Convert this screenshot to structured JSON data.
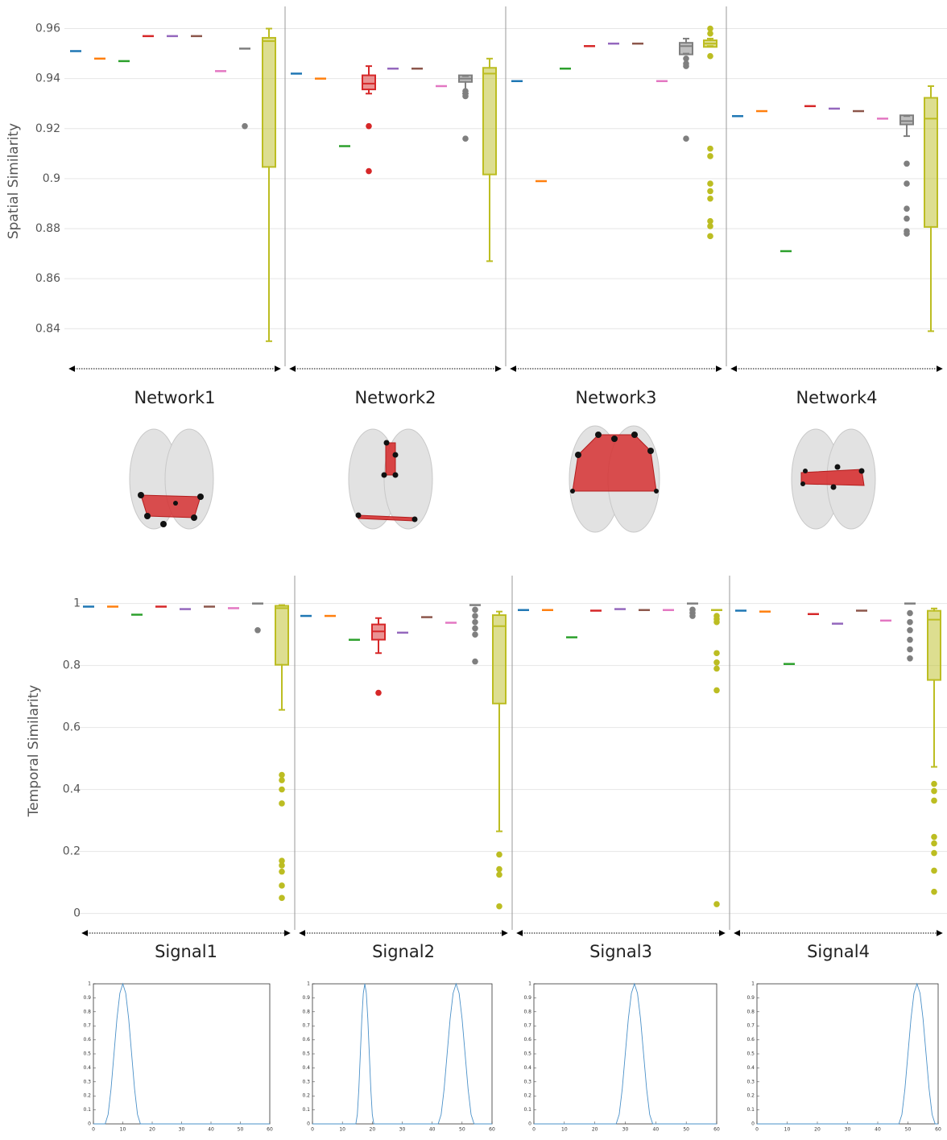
{
  "chart_data": [
    {
      "type": "box",
      "ylabel": "Spatial Similarity",
      "ylim": [
        0.833,
        0.965
      ],
      "yticks": [
        0.84,
        0.86,
        0.88,
        0.9,
        0.92,
        0.94,
        0.96
      ],
      "grid": true,
      "groups": [
        "Network1",
        "Network2",
        "Network3",
        "Network4"
      ],
      "series": [
        {
          "color": "#1f77b4",
          "boxes": [
            {
              "median": 0.951
            },
            {
              "median": 0.942
            },
            {
              "median": 0.939
            },
            {
              "median": 0.925
            }
          ]
        },
        {
          "color": "#ff7f0e",
          "boxes": [
            {
              "median": 0.948
            },
            {
              "median": 0.94
            },
            {
              "median": 0.899
            },
            {
              "median": 0.927
            }
          ]
        },
        {
          "color": "#2ca02c",
          "boxes": [
            {
              "median": 0.947
            },
            {
              "median": 0.913
            },
            {
              "median": 0.944
            },
            {
              "median": 0.871
            }
          ]
        },
        {
          "color": "#d62728",
          "boxes": [
            {
              "median": 0.957
            },
            {
              "low": 0.934,
              "q1": 0.936,
              "median": 0.938,
              "q3": 0.941,
              "high": 0.945,
              "outliers": [
                0.921,
                0.903
              ]
            },
            {
              "median": 0.953
            },
            {
              "median": 0.929
            }
          ]
        },
        {
          "color": "#9467bd",
          "boxes": [
            {
              "median": 0.957
            },
            {
              "median": 0.944
            },
            {
              "median": 0.954
            },
            {
              "median": 0.928
            }
          ]
        },
        {
          "color": "#8c564b",
          "boxes": [
            {
              "median": 0.957
            },
            {
              "median": 0.944
            },
            {
              "median": 0.954
            },
            {
              "median": 0.927
            }
          ]
        },
        {
          "color": "#e377c2",
          "boxes": [
            {
              "median": 0.943
            },
            {
              "median": 0.937
            },
            {
              "median": 0.939
            },
            {
              "median": 0.924
            }
          ]
        },
        {
          "color": "#7f7f7f",
          "boxes": [
            {
              "median": 0.952,
              "outliers": [
                0.921
              ]
            },
            {
              "low": 0.934,
              "q1": 0.939,
              "median": 0.94,
              "q3": 0.941,
              "high": 0.941,
              "outliers": [
                0.935,
                0.933,
                0.916
              ]
            },
            {
              "low": 0.95,
              "q1": 0.95,
              "median": 0.953,
              "q3": 0.954,
              "high": 0.956,
              "outliers": [
                0.948,
                0.946,
                0.945,
                0.916
              ]
            },
            {
              "low": 0.917,
              "q1": 0.922,
              "median": 0.923,
              "q3": 0.925,
              "high": 0.925,
              "outliers": [
                0.906,
                0.898,
                0.888,
                0.884,
                0.879,
                0.878
              ]
            }
          ]
        },
        {
          "color": "#bcbd22",
          "boxes": [
            {
              "low": 0.835,
              "q1": 0.905,
              "median": 0.955,
              "q3": 0.956,
              "high": 0.96
            },
            {
              "low": 0.867,
              "q1": 0.902,
              "median": 0.942,
              "q3": 0.944,
              "high": 0.948
            },
            {
              "low": 0.953,
              "q1": 0.953,
              "median": 0.954,
              "q3": 0.955,
              "high": 0.956,
              "outliers": [
                0.96,
                0.958,
                0.949,
                0.912,
                0.909,
                0.898,
                0.895,
                0.892,
                0.883,
                0.881,
                0.877
              ]
            },
            {
              "low": 0.839,
              "q1": 0.881,
              "median": 0.924,
              "q3": 0.932,
              "high": 0.937
            }
          ]
        }
      ]
    },
    {
      "type": "box",
      "ylabel": "Temporal Similarity",
      "ylim": [
        -0.04,
        1.09
      ],
      "yticks": [
        0,
        0.2,
        0.4,
        0.6,
        0.8,
        1
      ],
      "grid": true,
      "groups": [
        "Signal1",
        "Signal2",
        "Signal3",
        "Signal4"
      ],
      "series": [
        {
          "color": "#1f77b4",
          "boxes": [
            {
              "median": 0.99
            },
            {
              "median": 0.96
            },
            {
              "median": 0.979
            },
            {
              "median": 0.977
            }
          ]
        },
        {
          "color": "#ff7f0e",
          "boxes": [
            {
              "median": 0.99
            },
            {
              "median": 0.96
            },
            {
              "median": 0.979
            },
            {
              "median": 0.974
            }
          ]
        },
        {
          "color": "#2ca02c",
          "boxes": [
            {
              "median": 0.964
            },
            {
              "median": 0.883
            },
            {
              "median": 0.891
            },
            {
              "median": 0.805
            }
          ]
        },
        {
          "color": "#d62728",
          "boxes": [
            {
              "median": 0.99
            },
            {
              "low": 0.84,
              "q1": 0.886,
              "median": 0.91,
              "q3": 0.93,
              "high": 0.953,
              "outliers": [
                0.712
              ]
            },
            {
              "median": 0.977
            },
            {
              "median": 0.966
            }
          ]
        },
        {
          "color": "#9467bd",
          "boxes": [
            {
              "median": 0.982
            },
            {
              "median": 0.906
            },
            {
              "median": 0.982
            },
            {
              "median": 0.935
            }
          ]
        },
        {
          "color": "#8c564b",
          "boxes": [
            {
              "median": 0.99
            },
            {
              "median": 0.956
            },
            {
              "median": 0.979
            },
            {
              "median": 0.977
            }
          ]
        },
        {
          "color": "#e377c2",
          "boxes": [
            {
              "median": 0.985
            },
            {
              "median": 0.938
            },
            {
              "median": 0.979
            },
            {
              "median": 0.945
            }
          ]
        },
        {
          "color": "#7f7f7f",
          "boxes": [
            {
              "median": 1.0,
              "outliers": [
                0.914
              ]
            },
            {
              "median": 0.995,
              "outliers": [
                0.98,
                0.96,
                0.94,
                0.92,
                0.9,
                0.813
              ]
            },
            {
              "median": 1.0,
              "outliers": [
                0.98,
                0.97,
                0.96
              ]
            },
            {
              "median": 1.0,
              "outliers": [
                0.969,
                0.94,
                0.914,
                0.883,
                0.852,
                0.823
              ]
            }
          ]
        },
        {
          "color": "#bcbd22",
          "boxes": [
            {
              "low": 0.657,
              "q1": 0.805,
              "median": 0.985,
              "q3": 0.99,
              "high": 0.995,
              "outliers": [
                0.447,
                0.43,
                0.4,
                0.355,
                0.17,
                0.155,
                0.135,
                0.09,
                0.05
              ]
            },
            {
              "low": 0.265,
              "q1": 0.68,
              "median": 0.927,
              "q3": 0.96,
              "high": 0.974,
              "outliers": [
                0.19,
                0.143,
                0.125,
                0.023
              ]
            },
            {
              "median": 0.979,
              "outliers": [
                0.96,
                0.95,
                0.94,
                0.84,
                0.81,
                0.79,
                0.72,
                0.03
              ]
            },
            {
              "low": 0.473,
              "q1": 0.756,
              "median": 0.948,
              "q3": 0.974,
              "high": 0.984,
              "outliers": [
                0.418,
                0.395,
                0.364,
                0.247,
                0.226,
                0.195,
                0.138,
                0.07
              ]
            }
          ]
        }
      ]
    },
    {
      "type": "line",
      "color": "#4a90c8",
      "xlim": [
        0,
        60
      ],
      "ylim": [
        0,
        1
      ],
      "xticks": [
        0,
        10,
        20,
        30,
        40,
        50,
        60
      ],
      "yticks": [
        0,
        0.1,
        0.2,
        0.3,
        0.4,
        0.5,
        0.6,
        0.7,
        0.8,
        0.9,
        1
      ],
      "x": [
        0,
        4,
        5,
        6,
        7,
        8,
        9,
        10,
        11,
        12,
        13,
        14,
        15,
        16,
        60
      ],
      "values": [
        0,
        0,
        0.067,
        0.25,
        0.5,
        0.75,
        0.933,
        1,
        0.933,
        0.75,
        0.5,
        0.25,
        0.067,
        0,
        0
      ]
    },
    {
      "type": "line",
      "color": "#4a90c8",
      "xlim": [
        0,
        60
      ],
      "ylim": [
        0,
        1
      ],
      "xticks": [
        0,
        10,
        20,
        30,
        40,
        50,
        60
      ],
      "yticks": [
        0,
        0.1,
        0.2,
        0.3,
        0.4,
        0.5,
        0.6,
        0.7,
        0.8,
        0.9,
        1
      ],
      "x": [
        0,
        14.5,
        15,
        15.5,
        16,
        16.5,
        17,
        17.5,
        18,
        18.5,
        19,
        19.5,
        20,
        20.5,
        42,
        43,
        44,
        45,
        46,
        47,
        48,
        49,
        50,
        51,
        52,
        53,
        54,
        60
      ],
      "values": [
        0,
        0,
        0.067,
        0.25,
        0.5,
        0.75,
        0.933,
        1,
        0.933,
        0.75,
        0.5,
        0.25,
        0.067,
        0,
        0,
        0.067,
        0.25,
        0.5,
        0.75,
        0.933,
        1,
        0.933,
        0.75,
        0.5,
        0.25,
        0.067,
        0,
        0
      ]
    },
    {
      "type": "line",
      "color": "#4a90c8",
      "xlim": [
        0,
        60
      ],
      "ylim": [
        0,
        1
      ],
      "xticks": [
        0,
        10,
        20,
        30,
        40,
        50,
        60
      ],
      "yticks": [
        0,
        0.1,
        0.2,
        0.3,
        0.4,
        0.5,
        0.6,
        0.7,
        0.8,
        0.9,
        1
      ],
      "x": [
        0,
        27,
        28,
        29,
        30,
        31,
        32,
        33,
        34,
        35,
        36,
        37,
        38,
        39,
        60
      ],
      "values": [
        0,
        0,
        0.067,
        0.25,
        0.5,
        0.75,
        0.933,
        1,
        0.933,
        0.75,
        0.5,
        0.25,
        0.067,
        0,
        0
      ]
    },
    {
      "type": "line",
      "color": "#4a90c8",
      "xlim": [
        0,
        60
      ],
      "ylim": [
        0,
        1
      ],
      "xticks": [
        0,
        10,
        20,
        30,
        40,
        50,
        60
      ],
      "yticks": [
        0,
        0.1,
        0.2,
        0.3,
        0.4,
        0.5,
        0.6,
        0.7,
        0.8,
        0.9,
        1
      ],
      "x": [
        0,
        47,
        48,
        49,
        50,
        51,
        52,
        53,
        54,
        55,
        56,
        57,
        58,
        59,
        60
      ],
      "values": [
        0,
        0,
        0.067,
        0.25,
        0.5,
        0.75,
        0.933,
        1,
        0.933,
        0.75,
        0.5,
        0.25,
        0.067,
        0,
        0
      ]
    }
  ]
}
